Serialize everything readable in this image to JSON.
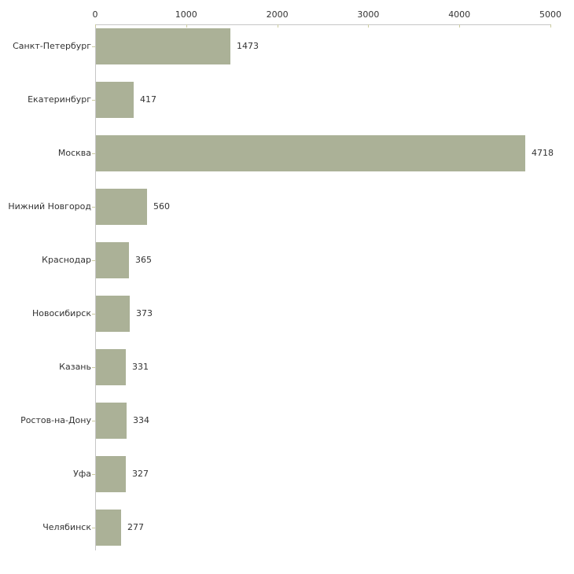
{
  "chart_data": {
    "type": "bar",
    "orientation": "horizontal",
    "title": "",
    "xlabel": "",
    "ylabel": "",
    "categories": [
      "Санкт-Петербург",
      "Екатеринбург",
      "Москва",
      "Нижний Новгород",
      "Краснодар",
      "Новосибирск",
      "Казань",
      "Ростов-на-Дону",
      "Уфа",
      "Челябинск"
    ],
    "values": [
      1473,
      417,
      4718,
      560,
      365,
      373,
      331,
      334,
      327,
      277
    ],
    "value_labels_shown": true,
    "xlim": [
      0,
      5000
    ],
    "x_ticks": [
      0,
      1000,
      2000,
      3000,
      4000,
      5000
    ],
    "grid": false,
    "legend": "none",
    "colors": {
      "bar": "#abb197",
      "axis_line": "#c6c6c6",
      "tick_mark": "#cccc9f",
      "text": "#333333",
      "background": "#ffffff"
    }
  }
}
